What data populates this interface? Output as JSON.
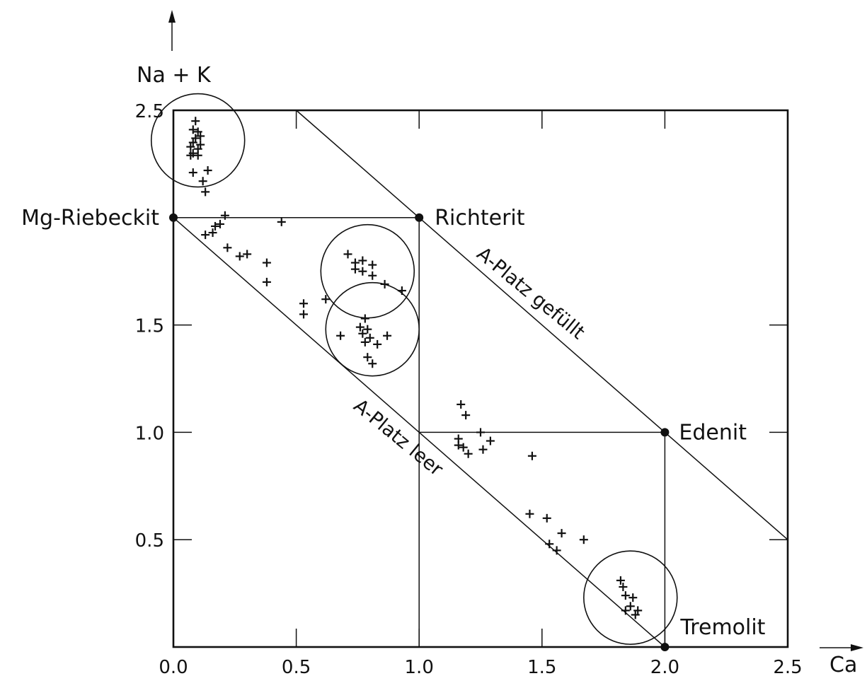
{
  "chart_data": {
    "type": "scatter",
    "xlabel": "Ca",
    "ylabel": "Na + K",
    "xlim": [
      0.0,
      2.5
    ],
    "ylim": [
      0.0,
      2.5
    ],
    "x_ticks": [
      "0.0",
      "0.5",
      "1.0",
      "1.5",
      "2.0",
      "2.5"
    ],
    "y_ticks": [
      "0.5",
      "1.0",
      "1.5",
      "2.5"
    ],
    "x_tick_values": [
      0.0,
      0.5,
      1.0,
      1.5,
      2.0,
      2.5
    ],
    "y_tick_values": [
      0.5,
      1.0,
      1.5,
      2.5
    ],
    "grid": false,
    "end_members": [
      {
        "name": "Mg-Riebeckit",
        "x": 0.0,
        "y": 2.0
      },
      {
        "name": "Richterit",
        "x": 1.0,
        "y": 2.0
      },
      {
        "name": "Edenit",
        "x": 2.0,
        "y": 1.0
      },
      {
        "name": "Tremolit",
        "x": 2.0,
        "y": 0.0
      }
    ],
    "reference_lines": [
      {
        "label": "A-Platz gefüllt",
        "from": [
          0.5,
          2.5
        ],
        "to": [
          2.5,
          0.5
        ]
      },
      {
        "label": "A-Platz leer",
        "from": [
          0.0,
          2.0
        ],
        "to": [
          2.0,
          0.0
        ]
      },
      {
        "label": "",
        "from": [
          0.0,
          2.0
        ],
        "to": [
          1.0,
          2.0
        ]
      },
      {
        "label": "",
        "from": [
          1.0,
          2.0
        ],
        "to": [
          1.0,
          0.0
        ]
      },
      {
        "label": "",
        "from": [
          1.0,
          1.0
        ],
        "to": [
          2.0,
          1.0
        ]
      },
      {
        "label": "",
        "from": [
          2.0,
          1.0
        ],
        "to": [
          2.0,
          0.0
        ]
      }
    ],
    "circled_groups": [
      {
        "x": 0.1,
        "y": 2.36,
        "r": 0.19
      },
      {
        "x": 0.79,
        "y": 1.75,
        "r": 0.19
      },
      {
        "x": 0.81,
        "y": 1.48,
        "r": 0.19
      },
      {
        "x": 1.86,
        "y": 0.23,
        "r": 0.19
      }
    ],
    "points": [
      {
        "x": 0.09,
        "y": 2.45
      },
      {
        "x": 0.08,
        "y": 2.41
      },
      {
        "x": 0.1,
        "y": 2.4
      },
      {
        "x": 0.11,
        "y": 2.38
      },
      {
        "x": 0.09,
        "y": 2.37
      },
      {
        "x": 0.08,
        "y": 2.35
      },
      {
        "x": 0.11,
        "y": 2.34
      },
      {
        "x": 0.07,
        "y": 2.33
      },
      {
        "x": 0.1,
        "y": 2.32
      },
      {
        "x": 0.08,
        "y": 2.3
      },
      {
        "x": 0.1,
        "y": 2.29
      },
      {
        "x": 0.07,
        "y": 2.29
      },
      {
        "x": 0.08,
        "y": 2.21
      },
      {
        "x": 0.14,
        "y": 2.22
      },
      {
        "x": 0.12,
        "y": 2.17
      },
      {
        "x": 0.13,
        "y": 2.12
      },
      {
        "x": 0.21,
        "y": 2.01
      },
      {
        "x": 0.19,
        "y": 1.97
      },
      {
        "x": 0.17,
        "y": 1.96
      },
      {
        "x": 0.16,
        "y": 1.93
      },
      {
        "x": 0.13,
        "y": 1.92
      },
      {
        "x": 0.44,
        "y": 1.98
      },
      {
        "x": 0.22,
        "y": 1.86
      },
      {
        "x": 0.27,
        "y": 1.82
      },
      {
        "x": 0.3,
        "y": 1.83
      },
      {
        "x": 0.38,
        "y": 1.79
      },
      {
        "x": 0.38,
        "y": 1.7
      },
      {
        "x": 0.53,
        "y": 1.6
      },
      {
        "x": 0.53,
        "y": 1.55
      },
      {
        "x": 0.62,
        "y": 1.62
      },
      {
        "x": 0.71,
        "y": 1.83
      },
      {
        "x": 0.74,
        "y": 1.79
      },
      {
        "x": 0.77,
        "y": 1.8
      },
      {
        "x": 0.81,
        "y": 1.78
      },
      {
        "x": 0.74,
        "y": 1.76
      },
      {
        "x": 0.77,
        "y": 1.75
      },
      {
        "x": 0.81,
        "y": 1.73
      },
      {
        "x": 0.86,
        "y": 1.69
      },
      {
        "x": 0.93,
        "y": 1.66
      },
      {
        "x": 0.78,
        "y": 1.53
      },
      {
        "x": 0.76,
        "y": 1.49
      },
      {
        "x": 0.79,
        "y": 1.48
      },
      {
        "x": 0.77,
        "y": 1.46
      },
      {
        "x": 0.8,
        "y": 1.44
      },
      {
        "x": 0.78,
        "y": 1.42
      },
      {
        "x": 0.83,
        "y": 1.41
      },
      {
        "x": 0.87,
        "y": 1.45
      },
      {
        "x": 0.68,
        "y": 1.45
      },
      {
        "x": 0.79,
        "y": 1.35
      },
      {
        "x": 0.81,
        "y": 1.32
      },
      {
        "x": 1.17,
        "y": 1.13
      },
      {
        "x": 1.19,
        "y": 1.08
      },
      {
        "x": 1.16,
        "y": 0.97
      },
      {
        "x": 1.16,
        "y": 0.94
      },
      {
        "x": 1.18,
        "y": 0.93
      },
      {
        "x": 1.2,
        "y": 0.9
      },
      {
        "x": 1.25,
        "y": 1.0
      },
      {
        "x": 1.29,
        "y": 0.96
      },
      {
        "x": 1.26,
        "y": 0.92
      },
      {
        "x": 1.46,
        "y": 0.89
      },
      {
        "x": 1.45,
        "y": 0.62
      },
      {
        "x": 1.52,
        "y": 0.6
      },
      {
        "x": 1.53,
        "y": 0.48
      },
      {
        "x": 1.56,
        "y": 0.45
      },
      {
        "x": 1.58,
        "y": 0.53
      },
      {
        "x": 1.67,
        "y": 0.5
      },
      {
        "x": 1.82,
        "y": 0.31
      },
      {
        "x": 1.83,
        "y": 0.28
      },
      {
        "x": 1.84,
        "y": 0.24
      },
      {
        "x": 1.87,
        "y": 0.23
      },
      {
        "x": 1.86,
        "y": 0.19
      },
      {
        "x": 1.89,
        "y": 0.17
      },
      {
        "x": 1.88,
        "y": 0.15
      },
      {
        "x": 1.84,
        "y": 0.17
      }
    ]
  }
}
